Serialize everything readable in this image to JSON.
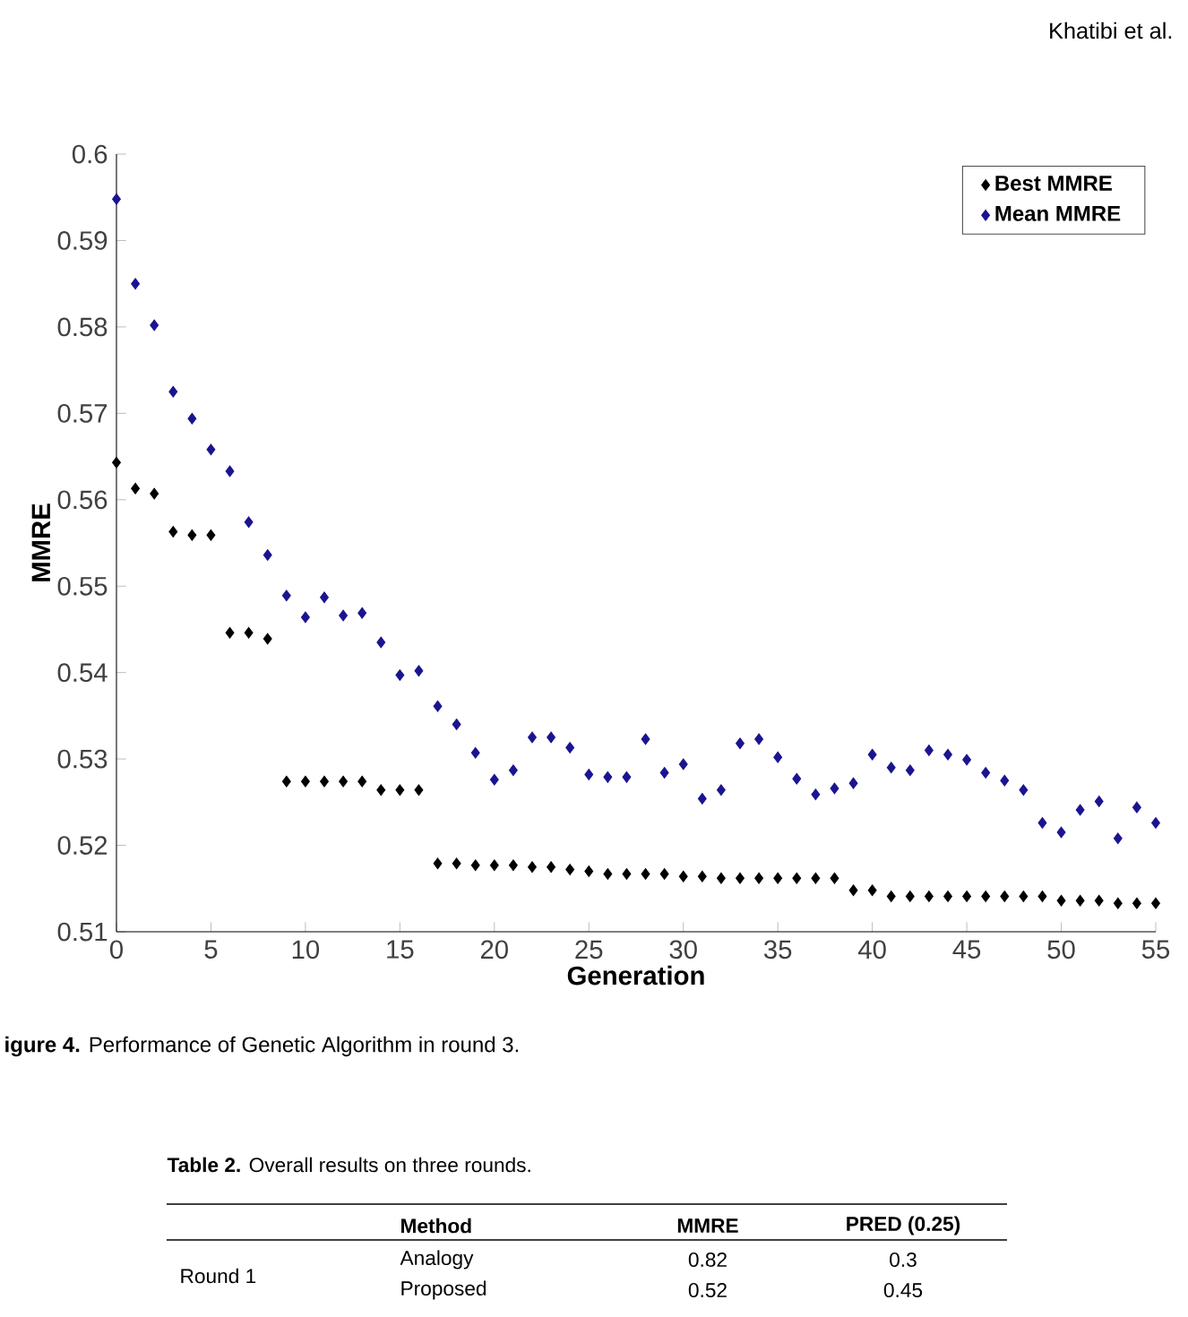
{
  "chart_data": {
    "type": "scatter",
    "xlabel": "Generation",
    "ylabel": "MMRE",
    "x": [
      0,
      1,
      2,
      3,
      4,
      5,
      6,
      7,
      8,
      9,
      10,
      11,
      12,
      13,
      14,
      15,
      16,
      17,
      18,
      19,
      20,
      21,
      22,
      23,
      24,
      25,
      26,
      27,
      28,
      29,
      30,
      31,
      32,
      33,
      34,
      35,
      36,
      37,
      38,
      39,
      40,
      41,
      42,
      43,
      44,
      45,
      46,
      47,
      48,
      49,
      50,
      51,
      52,
      53,
      54,
      55
    ],
    "series": [
      {
        "name": "Best MMRE",
        "color": "#000000",
        "values": [
          0.5643,
          0.5613,
          0.5607,
          0.5563,
          0.5559,
          0.5559,
          0.5446,
          0.5446,
          0.5439,
          0.5274,
          0.5274,
          0.5274,
          0.5274,
          0.5274,
          0.5264,
          0.5264,
          0.5264,
          0.5179,
          0.5179,
          0.5177,
          0.5177,
          0.5177,
          0.5175,
          0.5175,
          0.5172,
          0.517,
          0.5167,
          0.5167,
          0.5167,
          0.5167,
          0.5164,
          0.5164,
          0.5162,
          0.5162,
          0.5162,
          0.5162,
          0.5162,
          0.5162,
          0.5162,
          0.5148,
          0.5148,
          0.5141,
          0.5141,
          0.5141,
          0.5141,
          0.5141,
          0.5141,
          0.5141,
          0.5141,
          0.5141,
          0.5136,
          0.5136,
          0.5136,
          0.5133,
          0.5133,
          0.5133
        ]
      },
      {
        "name": "Mean MMRE",
        "color": "#1a1490",
        "values": [
          0.5948,
          0.585,
          0.5802,
          0.5725,
          0.5694,
          0.5658,
          0.5633,
          0.5574,
          0.5536,
          0.5489,
          0.5464,
          0.5487,
          0.5466,
          0.5469,
          0.5435,
          0.5397,
          0.5402,
          0.5361,
          0.534,
          0.5307,
          0.5276,
          0.5287,
          0.5325,
          0.5325,
          0.5313,
          0.5282,
          0.5279,
          0.5279,
          0.5323,
          0.5284,
          0.5294,
          0.5254,
          0.5264,
          0.5318,
          0.5323,
          0.5302,
          0.5277,
          0.5259,
          0.5266,
          0.5272,
          0.5305,
          0.529,
          0.5287,
          0.531,
          0.5305,
          0.5299,
          0.5284,
          0.5275,
          0.5264,
          0.5226,
          0.5215,
          0.5241,
          0.5251,
          0.5208,
          0.5244,
          0.5226
        ]
      }
    ],
    "xlim": [
      0,
      55
    ],
    "ylim": [
      0.51,
      0.6
    ],
    "xticks": [
      0,
      5,
      10,
      15,
      20,
      25,
      30,
      35,
      40,
      45,
      50,
      55
    ],
    "yticks": [
      0.51,
      0.52,
      0.53,
      0.54,
      0.55,
      0.56,
      0.57,
      0.58,
      0.59,
      0.6
    ],
    "legend": "top right",
    "marker": "diamond",
    "annotations": [
      "Khatibi et al.",
      "**igure 4.** Performance of Genetic Algorithm in round 3.",
      "**Table 2.** Overall results on three rounds.",
      "Method",
      "MMRE",
      "PRED (0.25)",
      "Round 1",
      "Analogy",
      "0.82",
      "0.3",
      "Proposed",
      "0.52",
      "0.45"
    ]
  }
}
